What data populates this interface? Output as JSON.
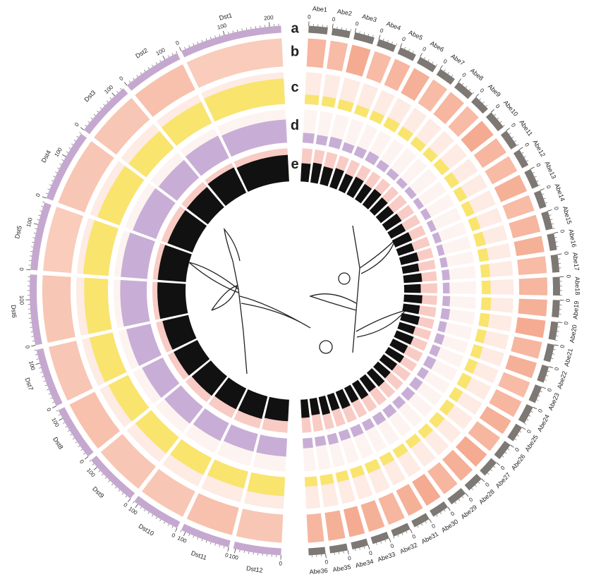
{
  "chart_data": {
    "type": "circos",
    "groups": [
      {
        "color": "#c5a8cf",
        "minor_tick_step": 10,
        "chromosomes": [
          {
            "name": "Dst1",
            "length": 225,
            "tick_labels": [
              0,
              100,
              200
            ]
          },
          {
            "name": "Dst2",
            "length": 130,
            "tick_labels": [
              0,
              100
            ]
          },
          {
            "name": "Dst3",
            "length": 125,
            "tick_labels": [
              0,
              100
            ]
          },
          {
            "name": "Dst4",
            "length": 160,
            "tick_labels": [
              0,
              100
            ]
          },
          {
            "name": "Dst5",
            "length": 150,
            "tick_labels": [
              0,
              100
            ]
          },
          {
            "name": "Dst6",
            "length": 155,
            "tick_labels": [
              0,
              100
            ]
          },
          {
            "name": "Dst7",
            "length": 130,
            "tick_labels": [
              0,
              100
            ]
          },
          {
            "name": "Dst8",
            "length": 120,
            "tick_labels": [
              0,
              100
            ]
          },
          {
            "name": "Dst9",
            "length": 120,
            "tick_labels": [
              0,
              100
            ]
          },
          {
            "name": "Dst10",
            "length": 110,
            "tick_labels": [
              0,
              100
            ]
          },
          {
            "name": "Dst11",
            "length": 110,
            "tick_labels": [
              0,
              100
            ]
          },
          {
            "name": "Dst12",
            "length": 105,
            "tick_labels": [
              0,
              100
            ]
          }
        ]
      },
      {
        "color": "#7d7873",
        "minor_tick_step": 10,
        "chromosomes": [
          {
            "name": "Abe1",
            "length": 42,
            "tick_labels": [
              0
            ]
          },
          {
            "name": "Abe2",
            "length": 40,
            "tick_labels": [
              0
            ]
          },
          {
            "name": "Abe3",
            "length": 44,
            "tick_labels": [
              0
            ]
          },
          {
            "name": "Abe4",
            "length": 40,
            "tick_labels": [
              0
            ]
          },
          {
            "name": "Abe5",
            "length": 38,
            "tick_labels": [
              0
            ]
          },
          {
            "name": "Abe6",
            "length": 41,
            "tick_labels": [
              0
            ]
          },
          {
            "name": "Abe7",
            "length": 39,
            "tick_labels": [
              0
            ]
          },
          {
            "name": "Abe8",
            "length": 40,
            "tick_labels": [
              0
            ]
          },
          {
            "name": "Abe9",
            "length": 37,
            "tick_labels": [
              0
            ]
          },
          {
            "name": "Abe10",
            "length": 42,
            "tick_labels": [
              0
            ]
          },
          {
            "name": "Abe11",
            "length": 40,
            "tick_labels": [
              0
            ]
          },
          {
            "name": "Abe12",
            "length": 39,
            "tick_labels": [
              0
            ]
          },
          {
            "name": "Abe13",
            "length": 41,
            "tick_labels": [
              0
            ]
          },
          {
            "name": "Abe14",
            "length": 38,
            "tick_labels": [
              0
            ]
          },
          {
            "name": "Abe15",
            "length": 40,
            "tick_labels": [
              0
            ]
          },
          {
            "name": "Abe16",
            "length": 37,
            "tick_labels": [
              0
            ]
          },
          {
            "name": "Abe17",
            "length": 39,
            "tick_labels": [
              0
            ]
          },
          {
            "name": "Abe18",
            "length": 41,
            "tick_labels": [
              0
            ]
          },
          {
            "name": "Abe19",
            "length": 38,
            "tick_labels": [
              0
            ]
          },
          {
            "name": "Abe20",
            "length": 40,
            "tick_labels": [
              0
            ]
          },
          {
            "name": "Abe21",
            "length": 39,
            "tick_labels": [
              0
            ]
          },
          {
            "name": "Abe22",
            "length": 37,
            "tick_labels": [
              0
            ]
          },
          {
            "name": "Abe23",
            "length": 38,
            "tick_labels": [
              0
            ]
          },
          {
            "name": "Abe24",
            "length": 40,
            "tick_labels": [
              0
            ]
          },
          {
            "name": "Abe25",
            "length": 36,
            "tick_labels": [
              0
            ]
          },
          {
            "name": "Abe26",
            "length": 39,
            "tick_labels": [
              0
            ]
          },
          {
            "name": "Abe27",
            "length": 38,
            "tick_labels": [
              0
            ]
          },
          {
            "name": "Abe28",
            "length": 37,
            "tick_labels": [
              0
            ]
          },
          {
            "name": "Abe29",
            "length": 39,
            "tick_labels": [
              0
            ]
          },
          {
            "name": "Abe30",
            "length": 38,
            "tick_labels": [
              0
            ]
          },
          {
            "name": "Abe31",
            "length": 37,
            "tick_labels": [
              0
            ]
          },
          {
            "name": "Abe32",
            "length": 40,
            "tick_labels": [
              0
            ]
          },
          {
            "name": "Abe33",
            "length": 38,
            "tick_labels": [
              0
            ]
          },
          {
            "name": "Abe34",
            "length": 36,
            "tick_labels": [
              0
            ]
          },
          {
            "name": "Abe35",
            "length": 39,
            "tick_labels": [
              0
            ]
          },
          {
            "name": "Abe36",
            "length": 37,
            "tick_labels": [
              0
            ]
          }
        ]
      }
    ],
    "tracks": [
      {
        "label": "a",
        "kind": "ideogram"
      },
      {
        "label": "b",
        "kind": "heatmap",
        "color": "#ee7a52",
        "background": "#fde7de",
        "values": [
          0.25,
          0.35,
          0.3,
          0.3,
          0.25,
          0.3,
          0.3,
          0.35,
          0.3,
          0.3,
          0.35,
          0.3,
          0.45,
          0.4,
          0.55,
          0.4,
          0.45,
          0.5,
          0.4,
          0.45,
          0.4,
          0.55,
          0.45,
          0.4,
          0.5,
          0.4,
          0.45,
          0.5,
          0.4,
          0.45,
          0.5,
          0.55,
          0.45,
          0.5,
          0.4,
          0.45,
          0.5,
          0.45,
          0.55,
          0.5,
          0.45,
          0.55,
          0.5,
          0.45,
          0.5,
          0.55,
          0.5,
          0.45
        ]
      },
      {
        "label": "c",
        "kind": "histogram",
        "color": "#f9e46e",
        "background": "#fdebe4",
        "values": [
          0.8,
          0.75,
          0.7,
          0.75,
          0.8,
          0.75,
          0.75,
          0.7,
          0.65,
          0.6,
          0.55,
          0.6,
          0.3,
          0.3,
          0.3,
          0.28,
          0.3,
          0.32,
          0.3,
          0.28,
          0.3,
          0.3,
          0.3,
          0.28,
          0.27,
          0.28,
          0.3,
          0.3,
          0.28,
          0.28,
          0.3,
          0.3,
          0.28,
          0.3,
          0.3,
          0.32,
          0.3,
          0.3,
          0.32,
          0.3,
          0.28,
          0.3,
          0.3,
          0.32,
          0.3,
          0.3,
          0.3,
          0.3
        ]
      },
      {
        "label": "d",
        "kind": "histogram",
        "color": "#c8aed6",
        "background": "#fdf4f1",
        "values": [
          0.7,
          0.75,
          0.7,
          0.75,
          0.8,
          0.8,
          0.75,
          0.7,
          0.65,
          0.6,
          0.55,
          0.55,
          0.3,
          0.28,
          0.3,
          0.25,
          0.28,
          0.3,
          0.25,
          0.22,
          0.2,
          0.2,
          0.18,
          0.2,
          0.18,
          0.2,
          0.18,
          0.2,
          0.22,
          0.2,
          0.22,
          0.25,
          0.22,
          0.25,
          0.25,
          0.28,
          0.25,
          0.28,
          0.3,
          0.28,
          0.3,
          0.3,
          0.28,
          0.3,
          0.28,
          0.3,
          0.28,
          0.3
        ]
      },
      {
        "label": "e",
        "kind": "histogram",
        "color": "#111111",
        "background": "#f9cbc5",
        "values": [
          0.8,
          0.85,
          0.8,
          0.8,
          0.85,
          0.85,
          0.8,
          0.8,
          0.75,
          0.7,
          0.7,
          0.65,
          0.55,
          0.6,
          0.55,
          0.6,
          0.55,
          0.6,
          0.55,
          0.6,
          0.55,
          0.5,
          0.55,
          0.5,
          0.55,
          0.5,
          0.55,
          0.5,
          0.55,
          0.5,
          0.55,
          0.5,
          0.55,
          0.5,
          0.55,
          0.5,
          0.55,
          0.5,
          0.5,
          0.55,
          0.5,
          0.55,
          0.5,
          0.55,
          0.5,
          0.55,
          0.5,
          0.55
        ]
      }
    ]
  }
}
